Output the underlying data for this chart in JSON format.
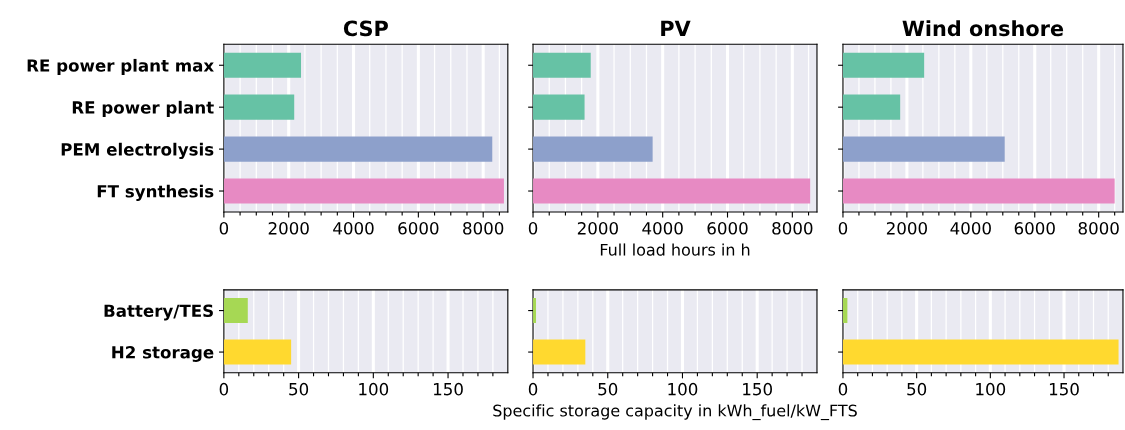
{
  "chart_data": [
    {
      "type": "bar",
      "orientation": "horizontal",
      "title": "CSP",
      "categories": [
        "RE power plant max",
        "RE power plant",
        "PEM electrolysis",
        "FT synthesis"
      ],
      "colors": [
        "#66c2a5",
        "#66c2a5",
        "#8da0cb",
        "#e78ac3"
      ],
      "values": [
        2380,
        2170,
        8280,
        8640
      ],
      "xlim": [
        0,
        8760
      ],
      "xticks": [
        0,
        {
          "value": 500,
          "label": null
        },
        {
          "value": 1000,
          "label": null
        },
        {
          "value": 1500,
          "label": null
        },
        2000,
        {
          "value": 2500,
          "label": null
        },
        {
          "value": 3000,
          "label": null
        },
        {
          "value": 3500,
          "label": null
        },
        4000,
        {
          "value": 4500,
          "label": null
        },
        {
          "value": 5000,
          "label": null
        },
        {
          "value": 5500,
          "label": null
        },
        6000,
        {
          "value": 6500,
          "label": null
        },
        {
          "value": 7000,
          "label": null
        },
        {
          "value": 7500,
          "label": null
        },
        8000,
        {
          "value": 8500,
          "label": null
        }
      ],
      "grid": "x"
    },
    {
      "type": "bar",
      "orientation": "horizontal",
      "title": "PV",
      "xlabel": "Full load hours in h",
      "categories": [
        null,
        null,
        null,
        null
      ],
      "colors": [
        "#66c2a5",
        "#66c2a5",
        "#8da0cb",
        "#e78ac3"
      ],
      "values": [
        1780,
        1590,
        3690,
        8550
      ],
      "xlim": [
        0,
        8760
      ],
      "xticks": [
        0,
        {
          "value": 500,
          "label": null
        },
        {
          "value": 1000,
          "label": null
        },
        {
          "value": 1500,
          "label": null
        },
        2000,
        {
          "value": 2500,
          "label": null
        },
        {
          "value": 3000,
          "label": null
        },
        {
          "value": 3500,
          "label": null
        },
        4000,
        {
          "value": 4500,
          "label": null
        },
        {
          "value": 5000,
          "label": null
        },
        {
          "value": 5500,
          "label": null
        },
        6000,
        {
          "value": 6500,
          "label": null
        },
        {
          "value": 7000,
          "label": null
        },
        {
          "value": 7500,
          "label": null
        },
        8000,
        {
          "value": 8500,
          "label": null
        }
      ],
      "grid": "x",
      "tick_labels": "x"
    },
    {
      "type": "bar",
      "orientation": "horizontal",
      "title": "Wind onshore",
      "categories": [
        null,
        null,
        null,
        null
      ],
      "colors": [
        "#66c2a5",
        "#66c2a5",
        "#8da0cb",
        "#e78ac3"
      ],
      "values": [
        2540,
        1790,
        5060,
        8500
      ],
      "xlim": [
        0,
        8760
      ],
      "xticks": [
        0,
        {
          "value": 500,
          "label": null
        },
        {
          "value": 1000,
          "label": null
        },
        {
          "value": 1500,
          "label": null
        },
        2000,
        {
          "value": 2500,
          "label": null
        },
        {
          "value": 3000,
          "label": null
        },
        {
          "value": 3500,
          "label": null
        },
        4000,
        {
          "value": 4500,
          "label": null
        },
        {
          "value": 5000,
          "label": null
        },
        {
          "value": 5500,
          "label": null
        },
        6000,
        {
          "value": 6500,
          "label": null
        },
        {
          "value": 7000,
          "label": null
        },
        {
          "value": 7500,
          "label": null
        },
        8000,
        {
          "value": 8500,
          "label": null
        }
      ],
      "grid": "x",
      "tick_labels": "x"
    },
    {
      "type": "bar",
      "orientation": "horizontal",
      "categories": [
        "Battery/TES",
        "H2 storage"
      ],
      "colors": [
        "#a6d854",
        "#ffd92f"
      ],
      "values": [
        16,
        45
      ],
      "xlim": [
        0,
        190
      ],
      "xticks": [
        0,
        {
          "value": 10,
          "label": null
        },
        {
          "value": 20,
          "label": null
        },
        {
          "value": 30,
          "label": null
        },
        {
          "value": 40,
          "label": null
        },
        50,
        {
          "value": 60,
          "label": null
        },
        {
          "value": 70,
          "label": null
        },
        {
          "value": 80,
          "label": null
        },
        {
          "value": 90,
          "label": null
        },
        100,
        {
          "value": 110,
          "label": null
        },
        {
          "value": 120,
          "label": null
        },
        {
          "value": 130,
          "label": null
        },
        {
          "value": 140,
          "label": null
        },
        150,
        {
          "value": 160,
          "label": null
        },
        {
          "value": 170,
          "label": null
        },
        {
          "value": 180,
          "label": null
        }
      ],
      "grid": "x"
    },
    {
      "type": "bar",
      "orientation": "horizontal",
      "xlabel": "Specific storage capacity in kWh_fuel/kW_FTS",
      "categories": [
        null,
        null
      ],
      "colors": [
        "#a6d854",
        "#ffd92f"
      ],
      "values": [
        2,
        35
      ],
      "xlim": [
        0,
        190
      ],
      "xticks": [
        0,
        {
          "value": 10,
          "label": null
        },
        {
          "value": 20,
          "label": null
        },
        {
          "value": 30,
          "label": null
        },
        {
          "value": 40,
          "label": null
        },
        50,
        {
          "value": 60,
          "label": null
        },
        {
          "value": 70,
          "label": null
        },
        {
          "value": 80,
          "label": null
        },
        {
          "value": 90,
          "label": null
        },
        100,
        {
          "value": 110,
          "label": null
        },
        {
          "value": 120,
          "label": null
        },
        {
          "value": 130,
          "label": null
        },
        {
          "value": 140,
          "label": null
        },
        150,
        {
          "value": 160,
          "label": null
        },
        {
          "value": 170,
          "label": null
        },
        {
          "value": 180,
          "label": null
        }
      ],
      "grid": "x",
      "tick_labels": "x"
    },
    {
      "type": "bar",
      "orientation": "horizontal",
      "categories": [
        null,
        null
      ],
      "colors": [
        "#a6d854",
        "#ffd92f"
      ],
      "values": [
        3,
        187
      ],
      "xlim": [
        0,
        190
      ],
      "xticks": [
        0,
        {
          "value": 10,
          "label": null
        },
        {
          "value": 20,
          "label": null
        },
        {
          "value": 30,
          "label": null
        },
        {
          "value": 40,
          "label": null
        },
        50,
        {
          "value": 60,
          "label": null
        },
        {
          "value": 70,
          "label": null
        },
        {
          "value": 80,
          "label": null
        },
        {
          "value": 90,
          "label": null
        },
        100,
        {
          "value": 110,
          "label": null
        },
        {
          "value": 120,
          "label": null
        },
        {
          "value": 130,
          "label": null
        },
        {
          "value": 140,
          "label": null
        },
        150,
        {
          "value": 160,
          "label": null
        },
        {
          "value": 170,
          "label": null
        },
        {
          "value": 180,
          "label": null
        }
      ],
      "grid": "x",
      "tick_labels": "x"
    }
  ]
}
